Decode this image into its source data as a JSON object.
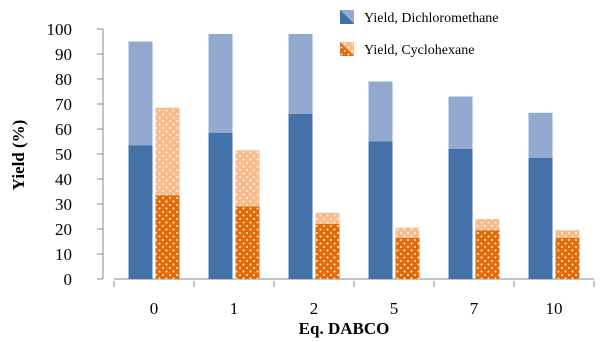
{
  "chart_data": {
    "type": "bar",
    "stacked": true,
    "categories": [
      "0",
      "1",
      "2",
      "5",
      "7",
      "10"
    ],
    "xlabel": "Eq. DABCO",
    "ylabel": "Yield (%)",
    "ylim": [
      0,
      100
    ],
    "yticks": [
      0,
      10,
      20,
      30,
      40,
      50,
      60,
      70,
      80,
      90,
      100
    ],
    "grid": false,
    "legend_position": "top-right",
    "series": [
      {
        "name": "Yield, Dichloromethane",
        "lower_values": [
          53.5,
          58.5,
          66,
          55,
          52,
          48.5
        ],
        "total_values": [
          95,
          98,
          98,
          79,
          73,
          66.5
        ],
        "color_dark": "#4472a8",
        "color_light": "#93a9d0"
      },
      {
        "name": "Yield, Cyclohexane",
        "lower_values": [
          33.5,
          29,
          22,
          16.5,
          19.5,
          16.5
        ],
        "total_values": [
          68.5,
          51.5,
          26.5,
          20.5,
          24,
          19.5
        ],
        "color_dark": "#e36c0a",
        "color_light": "#f8bc8c"
      }
    ]
  }
}
